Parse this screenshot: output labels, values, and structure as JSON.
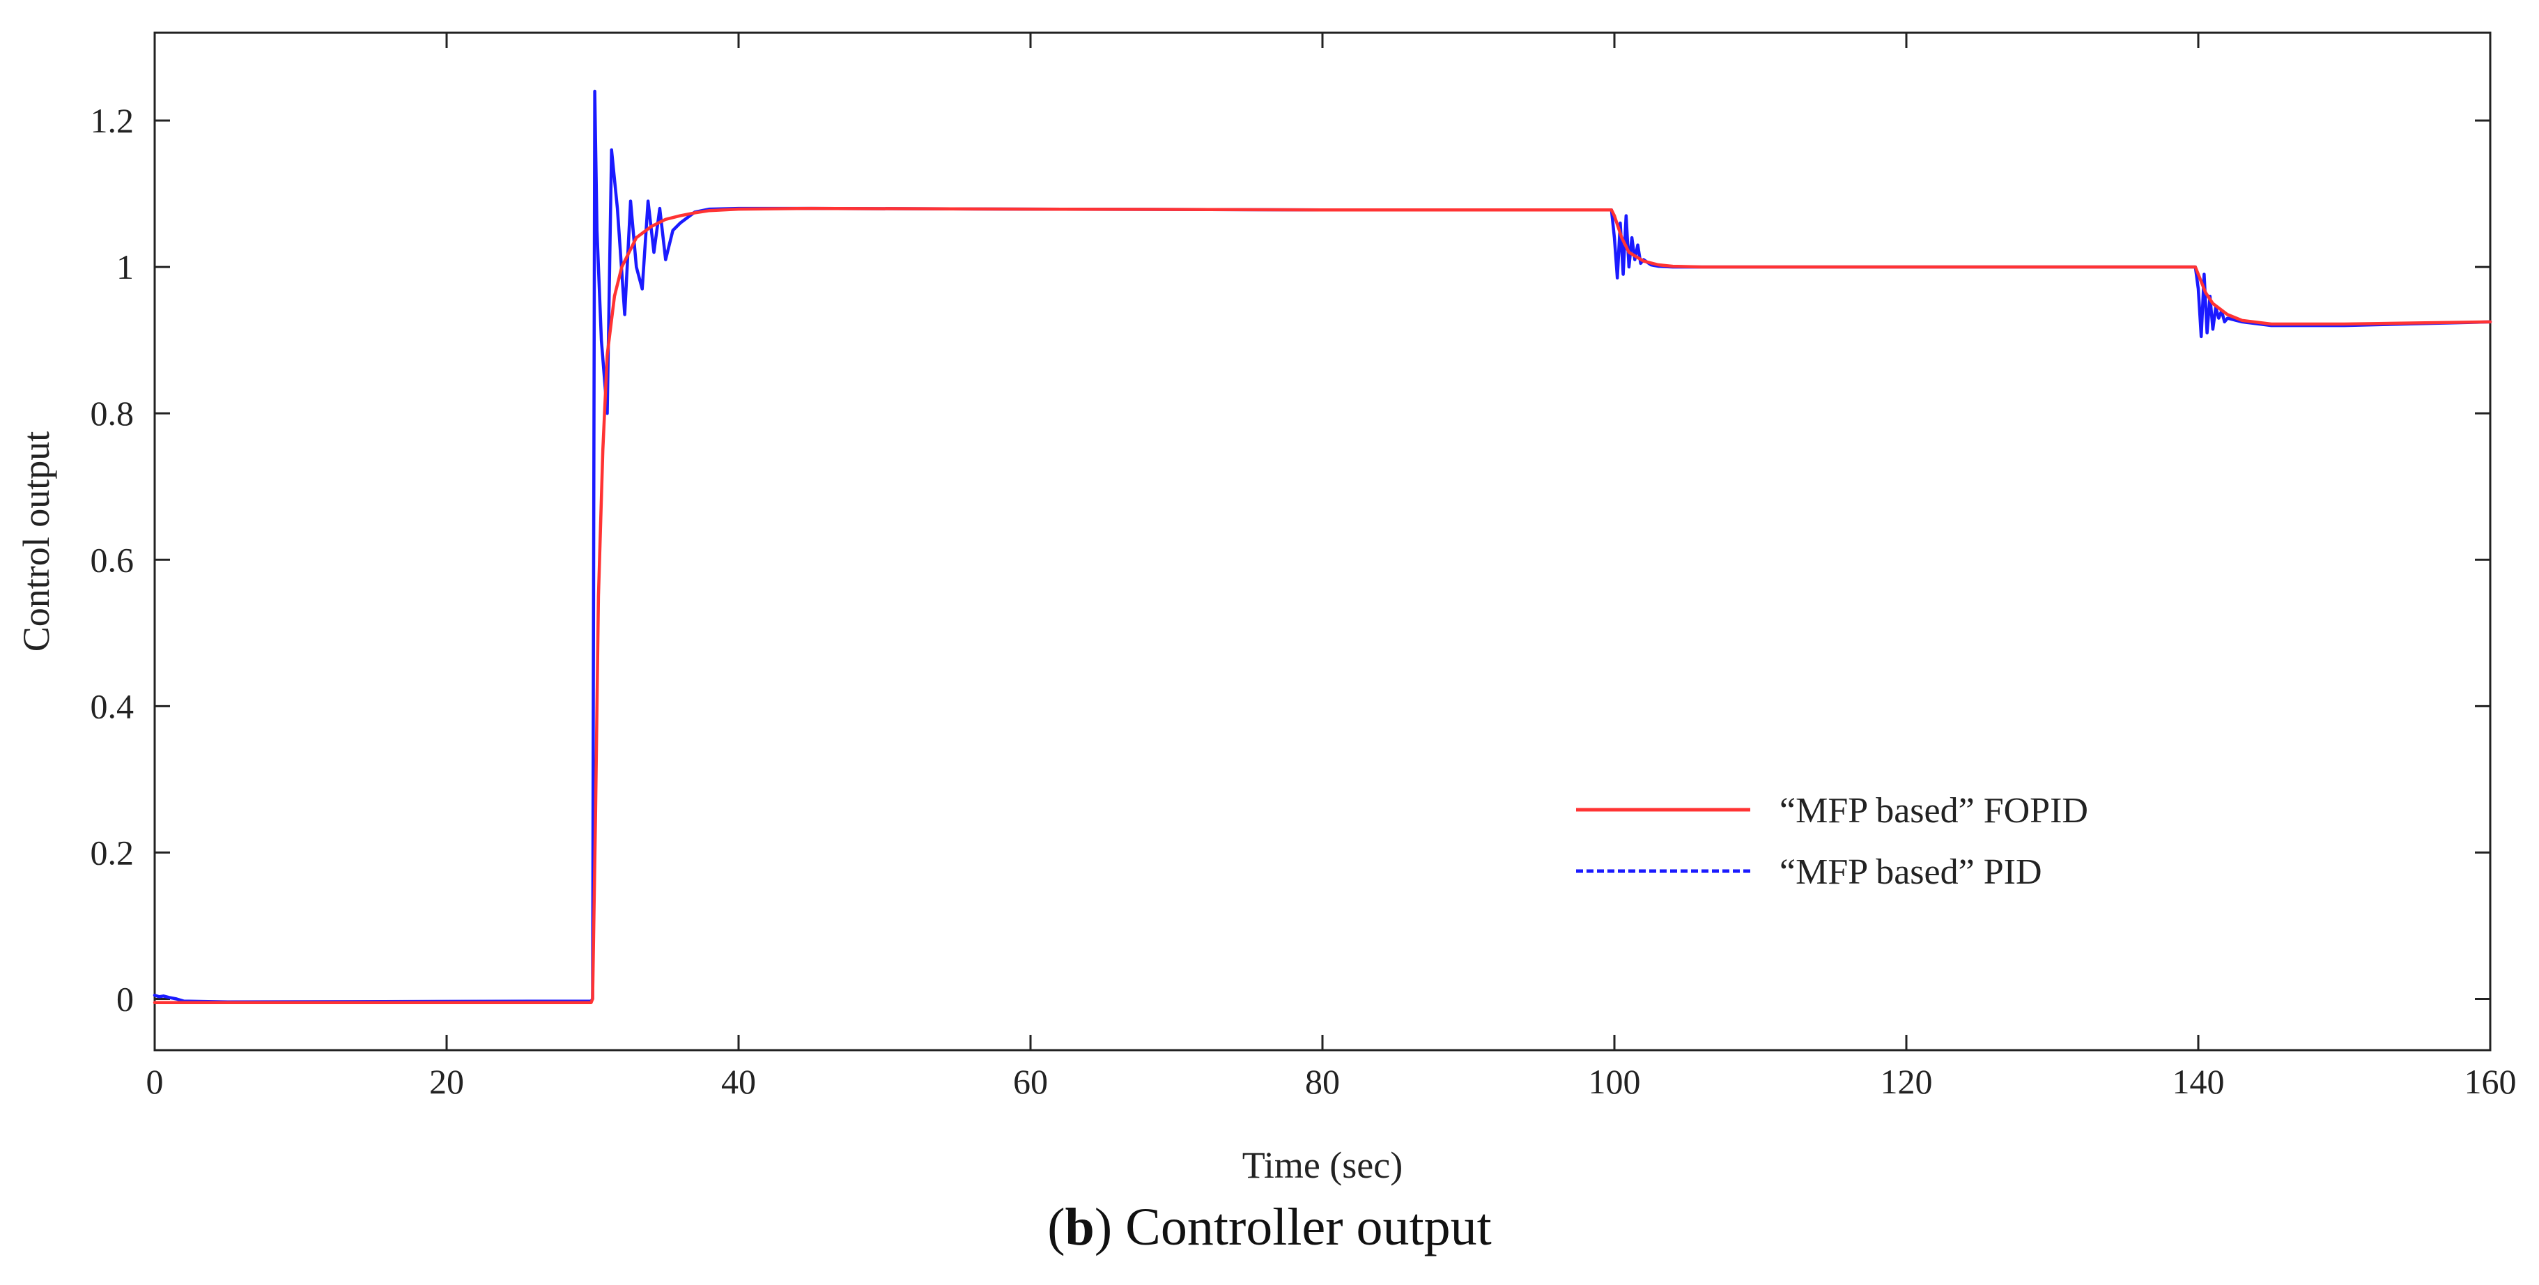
{
  "chart_data": {
    "type": "line",
    "title": "",
    "xlabel": "Time (sec)",
    "ylabel": "Control output",
    "xlim": [
      0,
      160
    ],
    "ylim": [
      -0.07,
      1.32
    ],
    "xticks": [
      0,
      20,
      40,
      60,
      80,
      100,
      120,
      140,
      160
    ],
    "yticks": [
      0,
      0.2,
      0.4,
      0.6,
      0.8,
      1,
      1.2
    ],
    "ytick_labels": [
      "0",
      "0.2",
      "0.4",
      "0.6",
      "0.8",
      "1",
      "1.2"
    ],
    "grid": false,
    "legend_position": "center-right",
    "series": [
      {
        "name": "“MFP based” FOPID",
        "color": "#ff3333",
        "style": "solid",
        "x": [
          0,
          29.9,
          30.0,
          30.2,
          30.4,
          30.7,
          31.0,
          31.5,
          32.0,
          33.0,
          34.0,
          35.0,
          36.0,
          37.0,
          38.0,
          40.0,
          45.0,
          60.0,
          80.0,
          99.8,
          100.0,
          100.5,
          101.0,
          102.0,
          103.0,
          104.0,
          106.0,
          110.0,
          120.0,
          139.8,
          140.0,
          140.5,
          141.0,
          142.0,
          143.0,
          145.0,
          150.0,
          160.0
        ],
        "y": [
          -0.005,
          -0.005,
          0.0,
          0.25,
          0.55,
          0.75,
          0.88,
          0.96,
          1.0,
          1.04,
          1.055,
          1.065,
          1.07,
          1.074,
          1.077,
          1.079,
          1.08,
          1.079,
          1.078,
          1.078,
          1.07,
          1.04,
          1.02,
          1.008,
          1.003,
          1.001,
          1.0,
          1.0,
          1.0,
          1.0,
          0.99,
          0.965,
          0.95,
          0.935,
          0.927,
          0.922,
          0.922,
          0.925
        ]
      },
      {
        "name": "“MFP based” PID",
        "color": "#1a1aff",
        "style": "dashed",
        "x": [
          0,
          0.3,
          0.6,
          1.0,
          1.5,
          2.0,
          5.0,
          29.9,
          30.0,
          30.15,
          30.3,
          30.6,
          31.0,
          31.3,
          31.7,
          32.2,
          32.6,
          33.0,
          33.4,
          33.8,
          34.2,
          34.6,
          35.0,
          35.5,
          36.0,
          37.0,
          38.0,
          40.0,
          45.0,
          60.0,
          80.0,
          99.8,
          100.0,
          100.2,
          100.4,
          100.6,
          100.8,
          101.0,
          101.2,
          101.4,
          101.6,
          101.8,
          102.0,
          102.5,
          103.0,
          104.0,
          110.0,
          139.8,
          140.0,
          140.2,
          140.4,
          140.6,
          140.8,
          141.0,
          141.2,
          141.4,
          141.6,
          141.8,
          142.0,
          143.0,
          145.0,
          150.0,
          160.0
        ],
        "y": [
          0.005,
          0.003,
          0.004,
          0.002,
          0.0,
          -0.003,
          -0.004,
          -0.003,
          0.0,
          1.24,
          1.05,
          0.9,
          0.8,
          1.16,
          1.08,
          0.935,
          1.09,
          1.0,
          0.97,
          1.09,
          1.02,
          1.08,
          1.01,
          1.05,
          1.06,
          1.075,
          1.079,
          1.08,
          1.08,
          1.079,
          1.078,
          1.078,
          1.04,
          0.985,
          1.06,
          0.99,
          1.07,
          1.0,
          1.04,
          1.01,
          1.03,
          1.005,
          1.01,
          1.003,
          1.001,
          1.0,
          1.0,
          1.0,
          0.97,
          0.905,
          0.99,
          0.91,
          0.96,
          0.915,
          0.945,
          0.93,
          0.94,
          0.925,
          0.93,
          0.925,
          0.92,
          0.92,
          0.925
        ]
      }
    ]
  },
  "caption": {
    "panel": "b",
    "text": "Controller output"
  }
}
